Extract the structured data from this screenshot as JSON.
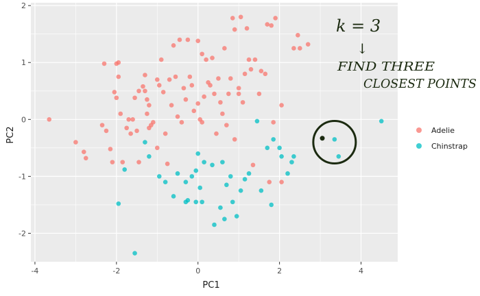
{
  "chart_data": {
    "type": "scatter",
    "xlabel": "PC1",
    "ylabel": "PC2",
    "xlim": [
      -4.1,
      4.9
    ],
    "ylim": [
      -2.5,
      2.05
    ],
    "xticks": [
      -4,
      -2,
      0,
      2,
      4
    ],
    "yticks": [
      -2,
      -1,
      0,
      1,
      2
    ],
    "grid": true,
    "legend_position": "right",
    "series": [
      {
        "name": "Adelie",
        "color": "#F8766D",
        "points": [
          [
            -3.65,
            0.0
          ],
          [
            -3.0,
            -0.4
          ],
          [
            -2.8,
            -0.57
          ],
          [
            -2.75,
            -0.68
          ],
          [
            -2.35,
            -0.1
          ],
          [
            -2.3,
            0.98
          ],
          [
            -2.25,
            -0.2
          ],
          [
            -2.15,
            -0.52
          ],
          [
            -2.1,
            -0.75
          ],
          [
            -2.0,
            0.98
          ],
          [
            -2.05,
            0.48
          ],
          [
            -2.0,
            0.38
          ],
          [
            -1.95,
            1.0
          ],
          [
            -1.95,
            0.75
          ],
          [
            -1.9,
            0.1
          ],
          [
            -1.85,
            -0.75
          ],
          [
            -1.75,
            -0.15
          ],
          [
            -1.7,
            0.0
          ],
          [
            -1.65,
            -0.25
          ],
          [
            -1.6,
            0.0
          ],
          [
            -1.55,
            0.38
          ],
          [
            -1.5,
            -0.2
          ],
          [
            -1.45,
            -0.75
          ],
          [
            -1.45,
            0.5
          ],
          [
            -1.35,
            0.58
          ],
          [
            -1.3,
            0.78
          ],
          [
            -1.3,
            0.5
          ],
          [
            -1.25,
            0.35
          ],
          [
            -1.25,
            0.1
          ],
          [
            -1.2,
            -0.15
          ],
          [
            -1.2,
            0.25
          ],
          [
            -1.15,
            -0.1
          ],
          [
            -1.1,
            -0.05
          ],
          [
            -1.0,
            0.7
          ],
          [
            -1.0,
            -0.5
          ],
          [
            -0.95,
            0.6
          ],
          [
            -0.9,
            1.05
          ],
          [
            -0.85,
            0.48
          ],
          [
            -0.8,
            -0.25
          ],
          [
            -0.75,
            -0.78
          ],
          [
            -0.7,
            0.7
          ],
          [
            -0.65,
            0.25
          ],
          [
            -0.6,
            1.3
          ],
          [
            -0.55,
            0.75
          ],
          [
            -0.5,
            0.05
          ],
          [
            -0.45,
            1.4
          ],
          [
            -0.4,
            -0.05
          ],
          [
            -0.35,
            0.55
          ],
          [
            -0.3,
            0.35
          ],
          [
            -0.25,
            1.4
          ],
          [
            -0.2,
            0.75
          ],
          [
            -0.15,
            0.6
          ],
          [
            -0.1,
            0.15
          ],
          [
            0.0,
            1.38
          ],
          [
            0.0,
            0.28
          ],
          [
            0.05,
            0.0
          ],
          [
            0.1,
            -0.05
          ],
          [
            0.1,
            1.15
          ],
          [
            0.15,
            0.4
          ],
          [
            0.2,
            1.05
          ],
          [
            0.25,
            0.65
          ],
          [
            0.3,
            0.6
          ],
          [
            0.35,
            1.08
          ],
          [
            0.4,
            0.45
          ],
          [
            0.45,
            -0.25
          ],
          [
            0.5,
            0.72
          ],
          [
            0.55,
            0.3
          ],
          [
            0.6,
            0.1
          ],
          [
            0.65,
            1.25
          ],
          [
            0.7,
            -0.1
          ],
          [
            0.75,
            0.45
          ],
          [
            0.8,
            0.72
          ],
          [
            0.85,
            1.78
          ],
          [
            0.9,
            -0.35
          ],
          [
            0.9,
            1.58
          ],
          [
            1.0,
            0.45
          ],
          [
            1.0,
            0.55
          ],
          [
            1.05,
            1.8
          ],
          [
            1.1,
            0.3
          ],
          [
            1.15,
            0.8
          ],
          [
            1.2,
            1.6
          ],
          [
            1.25,
            1.05
          ],
          [
            1.3,
            0.88
          ],
          [
            1.35,
            -0.8
          ],
          [
            1.4,
            1.05
          ],
          [
            1.5,
            0.45
          ],
          [
            1.55,
            0.85
          ],
          [
            1.65,
            0.8
          ],
          [
            1.7,
            1.67
          ],
          [
            1.75,
            -1.1
          ],
          [
            1.8,
            1.65
          ],
          [
            1.85,
            -0.05
          ],
          [
            1.9,
            1.78
          ],
          [
            2.05,
            0.25
          ],
          [
            2.05,
            -1.1
          ],
          [
            2.35,
            1.25
          ],
          [
            2.45,
            1.48
          ],
          [
            2.5,
            1.25
          ],
          [
            2.7,
            1.32
          ]
        ]
      },
      {
        "name": "Chinstrap",
        "color": "#00BFC4",
        "points": [
          [
            -1.95,
            -1.48
          ],
          [
            -1.8,
            -0.88
          ],
          [
            -1.55,
            -2.35
          ],
          [
            -1.3,
            -0.4
          ],
          [
            -1.2,
            -0.65
          ],
          [
            -0.95,
            -1.0
          ],
          [
            -0.8,
            -1.1
          ],
          [
            -0.6,
            -1.35
          ],
          [
            -0.5,
            -0.95
          ],
          [
            -0.3,
            -1.1
          ],
          [
            -0.3,
            -1.45
          ],
          [
            -0.25,
            -1.42
          ],
          [
            -0.15,
            -1.0
          ],
          [
            -0.05,
            -0.9
          ],
          [
            -0.05,
            -1.45
          ],
          [
            0.0,
            -0.6
          ],
          [
            0.05,
            -1.2
          ],
          [
            0.1,
            -1.45
          ],
          [
            0.15,
            -0.75
          ],
          [
            0.35,
            -0.8
          ],
          [
            0.4,
            -1.85
          ],
          [
            0.55,
            -1.55
          ],
          [
            0.6,
            -0.75
          ],
          [
            0.65,
            -1.75
          ],
          [
            0.7,
            -1.15
          ],
          [
            0.8,
            -1.0
          ],
          [
            0.85,
            -1.45
          ],
          [
            0.95,
            -1.7
          ],
          [
            1.05,
            -1.25
          ],
          [
            1.15,
            -1.05
          ],
          [
            1.25,
            -0.95
          ],
          [
            1.45,
            -0.03
          ],
          [
            1.55,
            -1.25
          ],
          [
            1.7,
            -0.5
          ],
          [
            1.8,
            -1.5
          ],
          [
            1.85,
            -0.35
          ],
          [
            2.0,
            -0.5
          ],
          [
            2.05,
            -0.65
          ],
          [
            2.2,
            -0.95
          ],
          [
            2.3,
            -0.75
          ],
          [
            2.35,
            -0.65
          ],
          [
            3.35,
            -0.35
          ],
          [
            3.45,
            -0.65
          ],
          [
            4.5,
            -0.03
          ]
        ]
      }
    ]
  },
  "annotations": {
    "k_label": "k = 3",
    "arrow": "↓",
    "line1": "FIND THREE",
    "line2": "CLOSEST POINTS",
    "query_point": [
      3.05,
      -0.33
    ],
    "circle_center": [
      3.35,
      -0.4
    ]
  },
  "legend": {
    "items": [
      {
        "label": "Adelie",
        "color": "#F8766D"
      },
      {
        "label": "Chinstrap",
        "color": "#00BFC4"
      }
    ]
  }
}
